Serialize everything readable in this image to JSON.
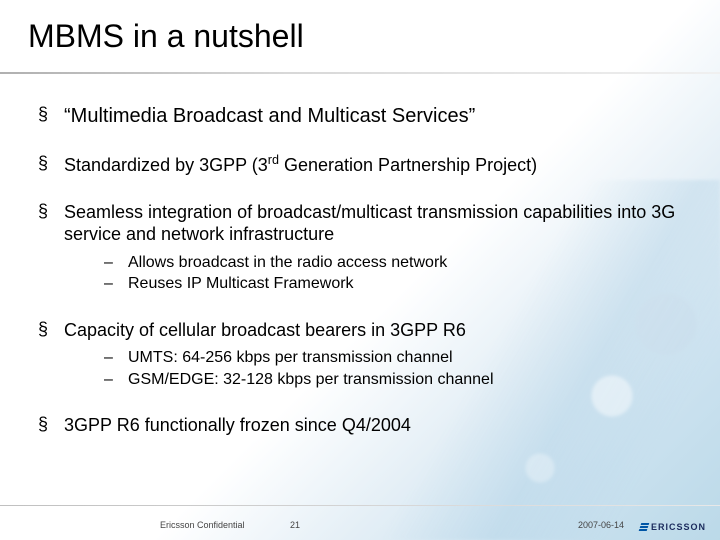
{
  "title": "MBMS in a nutshell",
  "bullets": [
    {
      "text": "“Multimedia Broadcast and Multicast Services”",
      "class": "b1",
      "sub": []
    },
    {
      "text": "Standardized by 3GPP (3",
      "sup": "rd",
      "text_after": " Generation Partnership Project)",
      "class": "b2",
      "sub": []
    },
    {
      "text": "Seamless integration of broadcast/multicast transmission capabilities into 3G service and network infrastructure",
      "class": "b2",
      "sub": [
        "Allows broadcast in the radio access network",
        "Reuses IP Multicast Framework"
      ]
    },
    {
      "text": "Capacity of cellular broadcast bearers in 3GPP R6",
      "class": "b2",
      "sub": [
        "UMTS:  64-256 kbps per transmission channel",
        "GSM/EDGE: 32-128 kbps per transmission channel"
      ]
    },
    {
      "text": "3GPP R6 functionally frozen since Q4/2004",
      "class": "b2",
      "sub": []
    }
  ],
  "footer": {
    "confidential": "Ericsson Confidential",
    "page": "21",
    "date": "2007-06-14",
    "logo_text": "ERICSSON"
  },
  "colors": {
    "title": "#000000",
    "text": "#000000",
    "logo": "#1a2a5c",
    "logo_bars": "#0055a5",
    "underline_start": "#b0b0b0",
    "underline_end": "#f0f0f0"
  }
}
